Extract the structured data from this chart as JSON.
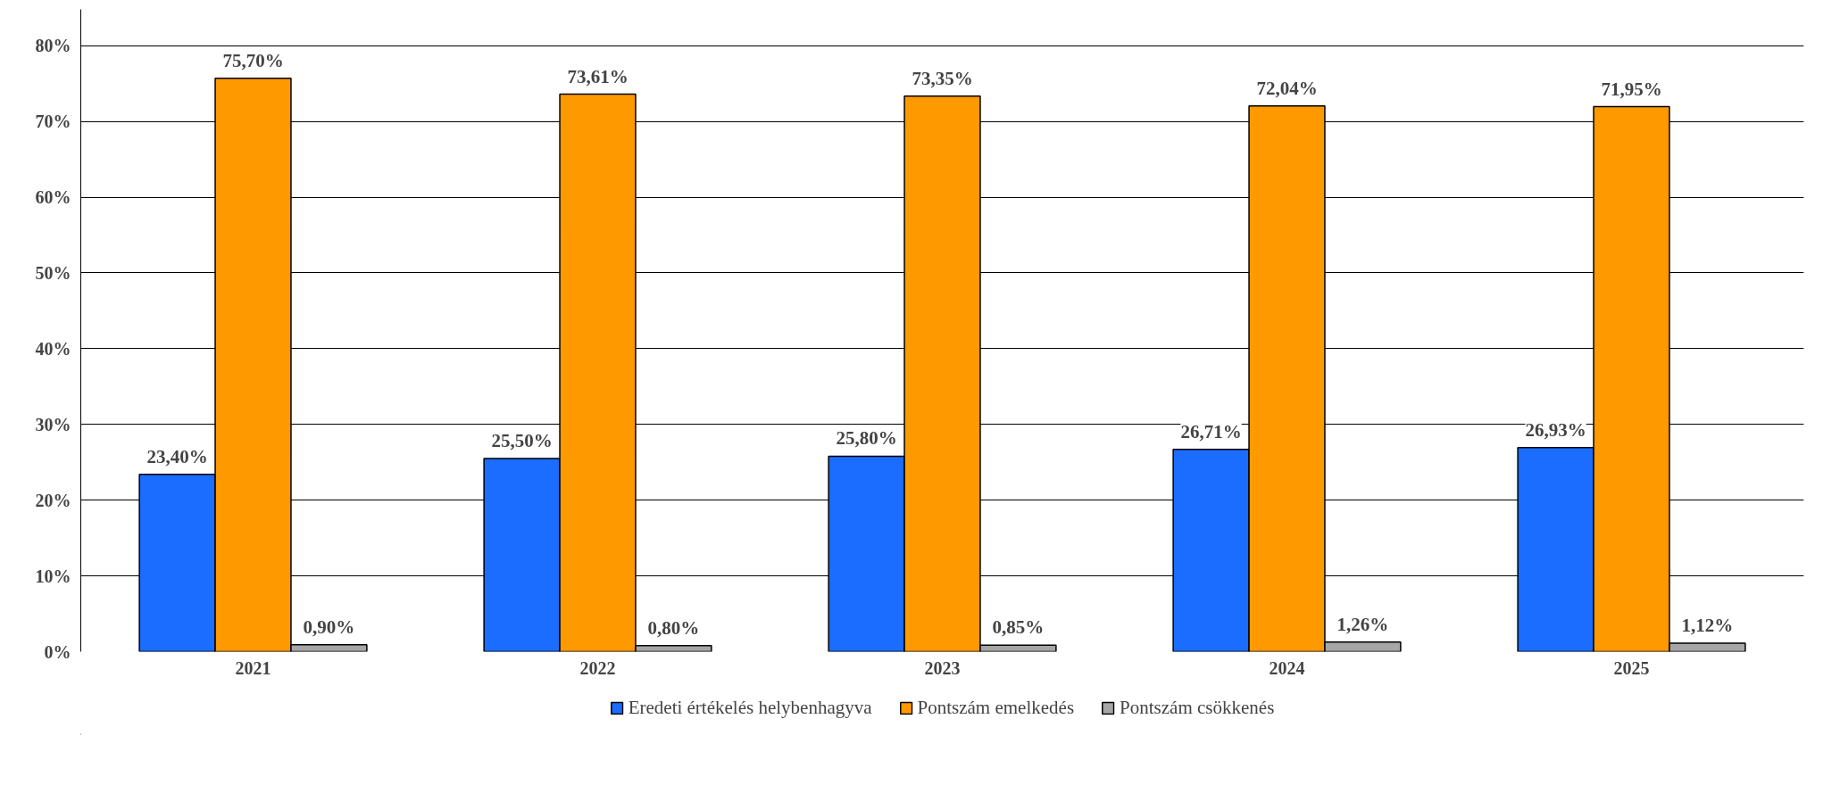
{
  "chart_data": {
    "type": "bar",
    "categories": [
      "2021",
      "2022",
      "2023",
      "2024",
      "2025"
    ],
    "series": [
      {
        "name": "Eredeti értékelés helybenhagyva",
        "color": "#1a6dff",
        "values": [
          23.4,
          25.5,
          25.8,
          26.71,
          26.93
        ],
        "value_labels": [
          "23,40%",
          "25,50%",
          "25,80%",
          "26,71%",
          "26,93%"
        ]
      },
      {
        "name": "Pontszám emelkedés",
        "color": "#ff9900",
        "values": [
          75.7,
          73.61,
          73.35,
          72.04,
          71.95
        ],
        "value_labels": [
          "75,70%",
          "73,61%",
          "73,35%",
          "72,04%",
          "71,95%"
        ]
      },
      {
        "name": "Pontszám csökkenés",
        "color": "#a6a6a6",
        "values": [
          0.9,
          0.8,
          0.85,
          1.26,
          1.12
        ],
        "value_labels": [
          "0,90%",
          "0,80%",
          "0,85%",
          "1,26%",
          "1,12%"
        ]
      }
    ],
    "ylim": [
      0,
      80
    ],
    "yticks": [
      {
        "value": 0,
        "label": "0%"
      },
      {
        "value": 10,
        "label": "10%"
      },
      {
        "value": 20,
        "label": "20%"
      },
      {
        "value": 30,
        "label": "30%"
      },
      {
        "value": 40,
        "label": "40%"
      },
      {
        "value": 50,
        "label": "50%"
      },
      {
        "value": 60,
        "label": "60%"
      },
      {
        "value": 70,
        "label": "70%"
      },
      {
        "value": 80,
        "label": "80%"
      }
    ],
    "grid": "y",
    "legend": "bottom"
  }
}
